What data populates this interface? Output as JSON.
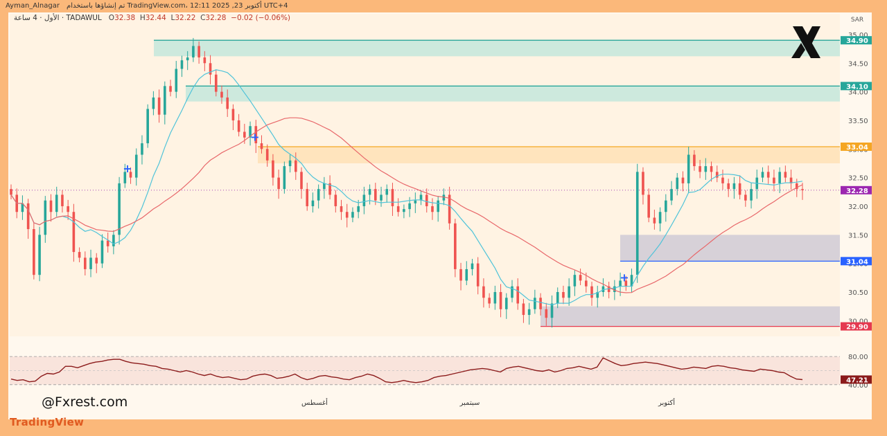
{
  "header": {
    "publisher": "Ayman_Alnagar",
    "published_note": "تم إنشاؤها باستخدام TradingView.com، 12:11 2025 ,23 أكتوبر UTC+4",
    "symbol_desc": "الأول · 4 ساعة · TADAWUL",
    "ohlc": {
      "o_label": "O",
      "o": "32.38",
      "h_label": "H",
      "h": "32.44",
      "l_label": "L",
      "l": "32.22",
      "c_label": "C",
      "c": "32.28",
      "change": "−0.02 (−0.06%)"
    }
  },
  "watermark": "@Fxrest.com",
  "brand": "TradingView",
  "currency": "SAR",
  "colors": {
    "up": "#26a69a",
    "down": "#ef5350",
    "ma_fast": "#4fc3d9",
    "ma_slow": "#e8676a",
    "zone_green": "#c8e8db",
    "zone_orange": "#ffe2b8",
    "zone_gray": "#d3cdd6",
    "rsi_line": "#8b1a1a",
    "background": "#fff8ee"
  },
  "chart_data": {
    "type": "candlestick",
    "y_axis": {
      "min": 29.75,
      "max": 35.12,
      "ticks": [
        "35.00",
        "34.50",
        "34.00",
        "33.50",
        "33.00",
        "32.50",
        "32.00",
        "31.50",
        "31.00",
        "30.50",
        "30.00"
      ]
    },
    "x_labels": [
      "أغسطس",
      "سبتمبر",
      "أكتوبر"
    ],
    "price_labels": [
      {
        "value": 34.9,
        "text": "34.90",
        "color": "#26a69a"
      },
      {
        "value": 34.1,
        "text": "34.10",
        "color": "#26a69a"
      },
      {
        "value": 33.04,
        "text": "33.04",
        "color": "#f5a623"
      },
      {
        "value": 32.28,
        "text": "32.28",
        "color": "#9c27b0"
      },
      {
        "value": 31.04,
        "text": "31.04",
        "color": "#2962ff"
      },
      {
        "value": 29.9,
        "text": "29.90",
        "color": "#e53950"
      }
    ],
    "levels": [
      {
        "value": 34.9,
        "color": "#26a69a"
      },
      {
        "value": 34.1,
        "color": "#26a69a"
      },
      {
        "value": 33.04,
        "color": "#f5a623"
      },
      {
        "value": 31.04,
        "color": "#2962ff"
      },
      {
        "value": 29.9,
        "color": "#e53950"
      }
    ],
    "zones": [
      {
        "low": 34.62,
        "high": 34.9,
        "color": "#c8e8db"
      },
      {
        "low": 33.83,
        "high": 34.1,
        "color": "#c8e8db"
      },
      {
        "low": 32.75,
        "high": 33.04,
        "color": "#ffe2b8"
      },
      {
        "low": 31.04,
        "high": 31.5,
        "color": "#d3cdd6"
      },
      {
        "low": 29.9,
        "high": 30.25,
        "color": "#d3cdd6"
      }
    ],
    "closes": [
      32.2,
      31.9,
      32.05,
      31.6,
      30.8,
      31.5,
      32.1,
      31.9,
      32.2,
      32.0,
      31.9,
      31.2,
      31.1,
      30.9,
      31.1,
      31.0,
      31.4,
      31.3,
      31.5,
      32.4,
      32.6,
      32.5,
      32.9,
      33.1,
      33.7,
      33.9,
      33.6,
      34.1,
      34.0,
      34.4,
      34.55,
      34.6,
      34.8,
      34.6,
      34.5,
      34.3,
      34.0,
      33.9,
      33.7,
      33.5,
      33.3,
      33.2,
      33.4,
      33.1,
      33.0,
      32.8,
      32.5,
      32.3,
      32.7,
      32.8,
      32.6,
      32.3,
      32.0,
      32.1,
      32.3,
      32.4,
      32.2,
      32.0,
      31.9,
      31.8,
      31.9,
      32.0,
      32.2,
      32.3,
      32.1,
      32.2,
      32.3,
      32.0,
      31.9,
      31.95,
      32.05,
      32.1,
      32.2,
      32.0,
      31.9,
      32.1,
      32.2,
      31.7,
      30.9,
      30.7,
      30.9,
      31.0,
      30.6,
      30.4,
      30.3,
      30.5,
      30.2,
      30.4,
      30.6,
      30.3,
      30.1,
      30.2,
      30.4,
      30.2,
      30.05,
      30.3,
      30.5,
      30.4,
      30.6,
      30.8,
      30.7,
      30.6,
      30.4,
      30.5,
      30.6,
      30.5,
      30.6,
      30.7,
      30.6,
      30.8,
      32.6,
      32.2,
      31.8,
      31.7,
      31.9,
      32.1,
      32.3,
      32.5,
      32.4,
      32.9,
      32.7,
      32.6,
      32.7,
      32.6,
      32.5,
      32.4,
      32.3,
      32.4,
      32.2,
      32.1,
      32.3,
      32.5,
      32.6,
      32.5,
      32.4,
      32.6,
      32.5,
      32.4,
      32.3,
      32.28
    ],
    "rsi": {
      "levels": [
        "80.00",
        "40.00"
      ],
      "last": "47.21",
      "values": [
        48,
        46,
        47,
        44,
        45,
        52,
        56,
        55,
        58,
        66,
        66,
        64,
        67,
        70,
        72,
        73,
        75,
        76,
        76,
        73,
        71,
        70,
        69,
        67,
        66,
        63,
        62,
        60,
        58,
        60,
        58,
        55,
        53,
        55,
        52,
        50,
        51,
        49,
        47,
        48,
        52,
        54,
        55,
        53,
        49,
        50,
        52,
        55,
        50,
        47,
        49,
        52,
        53,
        51,
        50,
        48,
        47,
        50,
        52,
        55,
        53,
        49,
        44,
        43,
        44,
        46,
        44,
        43,
        44,
        46,
        50,
        52,
        53,
        55,
        57,
        59,
        61,
        62,
        63,
        62,
        60,
        58,
        63,
        65,
        66,
        64,
        62,
        60,
        59,
        61,
        58,
        60,
        63,
        64,
        66,
        64,
        62,
        65,
        78,
        74,
        70,
        67,
        68,
        70,
        71,
        72,
        71,
        70,
        68,
        66,
        64,
        62,
        63,
        65,
        64,
        63,
        66,
        67,
        66,
        64,
        63,
        61,
        60,
        59,
        62,
        61,
        60,
        58,
        57,
        52,
        48,
        47.21
      ]
    },
    "markers": [
      "+",
      "+",
      "+"
    ]
  }
}
